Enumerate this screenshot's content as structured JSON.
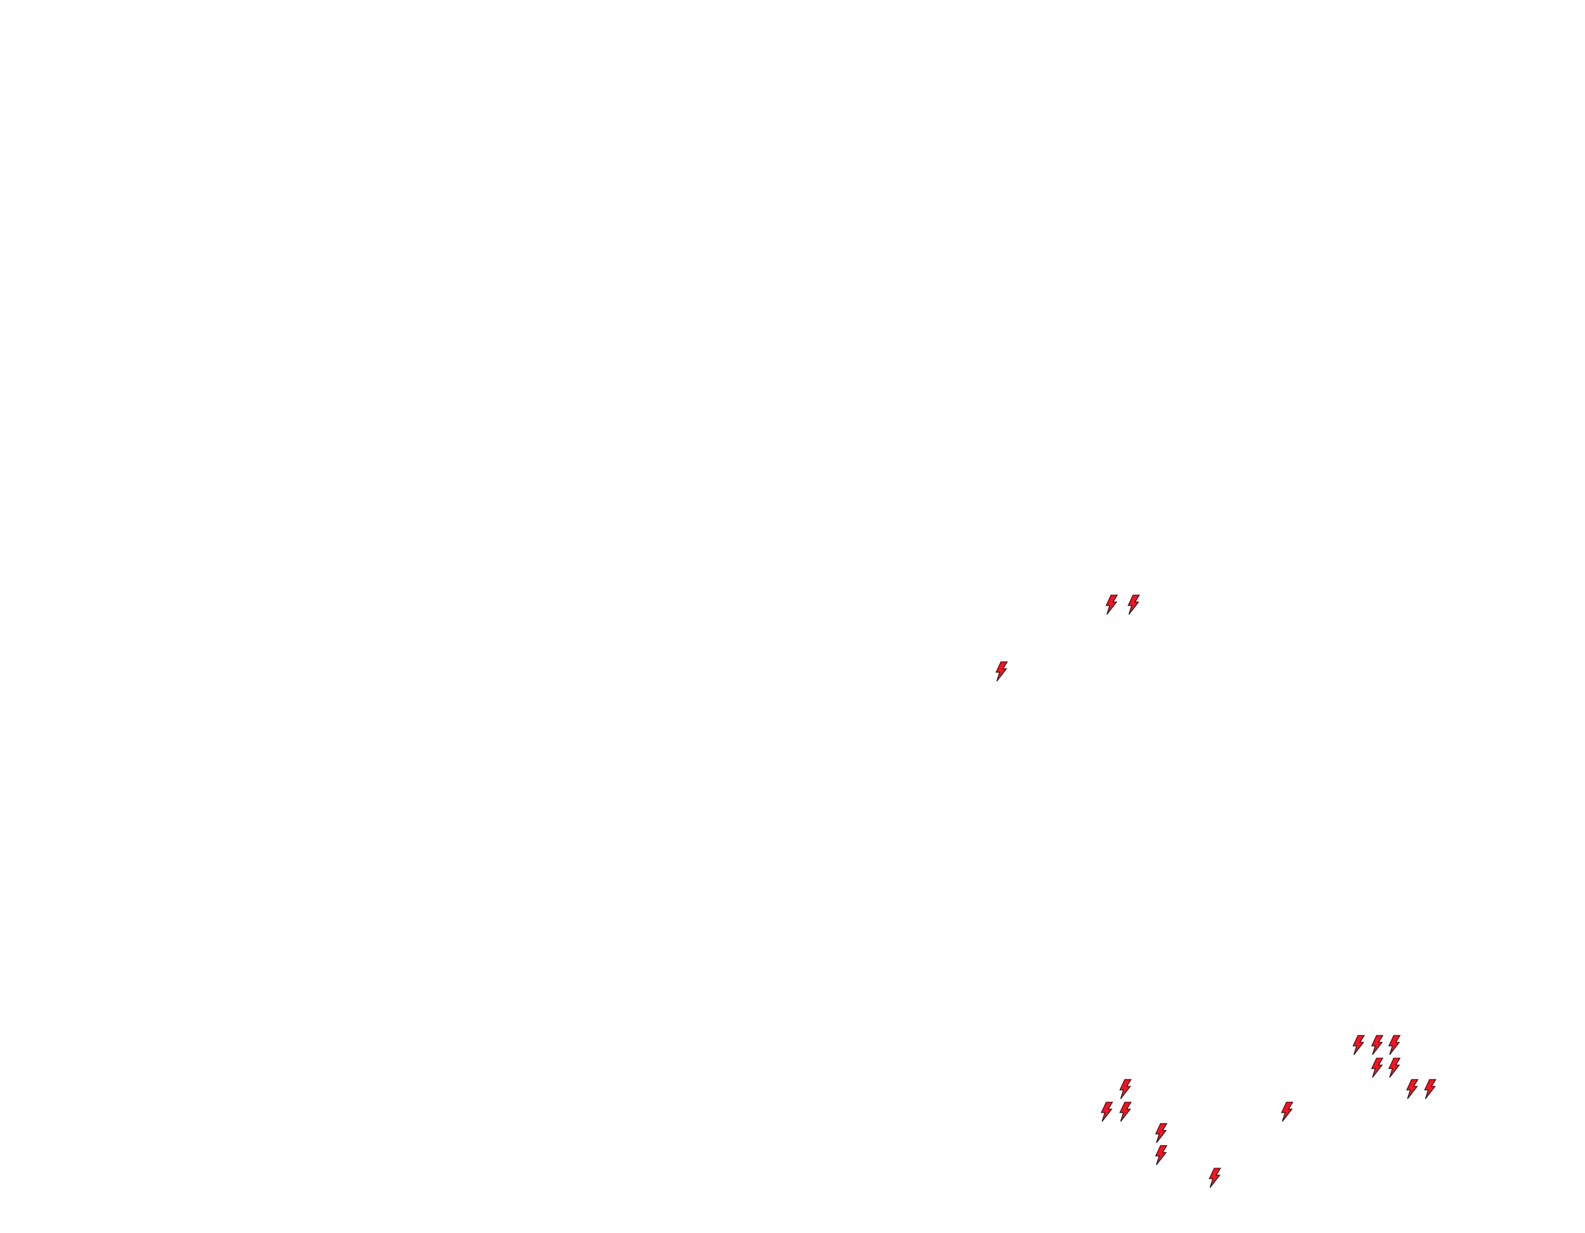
{
  "map": {
    "marker_icon": "lightning-bolt-icon",
    "marker_fill": "#ff1020",
    "marker_stroke": "#1a1a1a",
    "background": "#ffffff",
    "marker_count": 17
  }
}
